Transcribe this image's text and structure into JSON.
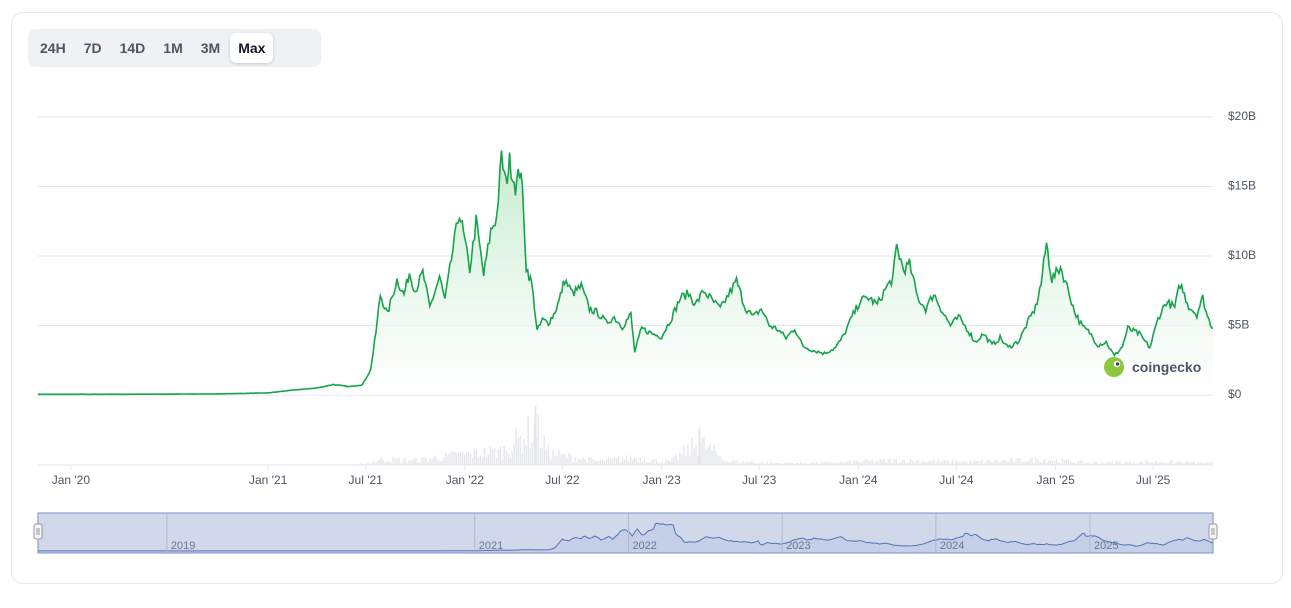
{
  "range_selector": {
    "buttons": [
      {
        "label": "24H",
        "active": false
      },
      {
        "label": "7D",
        "active": false
      },
      {
        "label": "14D",
        "active": false
      },
      {
        "label": "1M",
        "active": false
      },
      {
        "label": "3M",
        "active": false
      },
      {
        "label": "Max",
        "active": true
      }
    ]
  },
  "watermark": {
    "text": "coingecko",
    "icon": "gecko-logo-icon"
  },
  "colors": {
    "line": "#16a34a",
    "fill_top": "#bfe8c9",
    "fill_bottom": "#ffffff",
    "grid": "#e5e7eb",
    "volume": "#e5e7eb",
    "navigator_fill": "#d6ddf0",
    "navigator_line": "#4b6cb7"
  },
  "chart_data": {
    "type": "area",
    "title": "",
    "xlabel": "",
    "ylabel": "",
    "x_range": [
      "2019-11-01",
      "2025-10-20"
    ],
    "ylim": [
      0,
      20
    ],
    "y_unit": "billion USD",
    "y_ticks": [
      {
        "value": 0,
        "label": "$0"
      },
      {
        "value": 5,
        "label": "$5B"
      },
      {
        "value": 10,
        "label": "$10B"
      },
      {
        "value": 15,
        "label": "$15B"
      },
      {
        "value": 20,
        "label": "$20B"
      }
    ],
    "x_ticks": [
      {
        "date": "2020-01-01",
        "label": "Jan '20"
      },
      {
        "date": "2021-01-01",
        "label": "Jan '21"
      },
      {
        "date": "2021-07-01",
        "label": "Jul '21"
      },
      {
        "date": "2022-01-01",
        "label": "Jan '22"
      },
      {
        "date": "2022-07-01",
        "label": "Jul '22"
      },
      {
        "date": "2023-01-01",
        "label": "Jan '23"
      },
      {
        "date": "2023-07-01",
        "label": "Jul '23"
      },
      {
        "date": "2024-01-01",
        "label": "Jan '24"
      },
      {
        "date": "2024-07-01",
        "label": "Jul '24"
      },
      {
        "date": "2025-01-01",
        "label": "Jan '25"
      },
      {
        "date": "2025-07-01",
        "label": "Jul '25"
      }
    ],
    "series": [
      {
        "values": [
          [
            "2019-11-01",
            0.05
          ],
          [
            "2020-03-01",
            0.05
          ],
          [
            "2020-07-01",
            0.06
          ],
          [
            "2020-10-01",
            0.08
          ],
          [
            "2021-01-01",
            0.15
          ],
          [
            "2021-02-15",
            0.35
          ],
          [
            "2021-04-01",
            0.5
          ],
          [
            "2021-05-01",
            0.75
          ],
          [
            "2021-06-01",
            0.6
          ],
          [
            "2021-06-25",
            0.75
          ],
          [
            "2021-07-10",
            1.8
          ],
          [
            "2021-07-20",
            4.5
          ],
          [
            "2021-07-28",
            7.2
          ],
          [
            "2021-08-10",
            5.8
          ],
          [
            "2021-08-28",
            8.3
          ],
          [
            "2021-09-10",
            7.2
          ],
          [
            "2021-09-20",
            8.8
          ],
          [
            "2021-10-01",
            7.5
          ],
          [
            "2021-10-15",
            8.8
          ],
          [
            "2021-10-28",
            6.3
          ],
          [
            "2021-11-15",
            8.5
          ],
          [
            "2021-11-25",
            6.8
          ],
          [
            "2021-12-10",
            10.5
          ],
          [
            "2021-12-22",
            13.2
          ],
          [
            "2022-01-01",
            11.0
          ],
          [
            "2022-01-10",
            9.0
          ],
          [
            "2022-01-22",
            12.5
          ],
          [
            "2022-02-05",
            8.6
          ],
          [
            "2022-02-18",
            11.8
          ],
          [
            "2022-03-01",
            12.8
          ],
          [
            "2022-03-10",
            17.1
          ],
          [
            "2022-03-18",
            15.2
          ],
          [
            "2022-03-25",
            16.8
          ],
          [
            "2022-04-05",
            15.0
          ],
          [
            "2022-04-15",
            16.4
          ],
          [
            "2022-04-25",
            9.2
          ],
          [
            "2022-05-05",
            8.0
          ],
          [
            "2022-05-10",
            6.4
          ],
          [
            "2022-05-15",
            4.6
          ],
          [
            "2022-05-25",
            5.4
          ],
          [
            "2022-06-05",
            5.2
          ],
          [
            "2022-06-15",
            5.8
          ],
          [
            "2022-06-25",
            6.8
          ],
          [
            "2022-07-05",
            8.3
          ],
          [
            "2022-07-20",
            7.3
          ],
          [
            "2022-08-05",
            7.8
          ],
          [
            "2022-08-20",
            6.2
          ],
          [
            "2022-09-05",
            5.9
          ],
          [
            "2022-09-20",
            5.2
          ],
          [
            "2022-10-05",
            5.6
          ],
          [
            "2022-10-20",
            4.9
          ],
          [
            "2022-11-05",
            5.8
          ],
          [
            "2022-11-12",
            3.1
          ],
          [
            "2022-11-25",
            4.8
          ],
          [
            "2022-12-15",
            4.4
          ],
          [
            "2023-01-01",
            4.2
          ],
          [
            "2023-01-20",
            5.6
          ],
          [
            "2023-02-05",
            7.0
          ],
          [
            "2023-02-20",
            7.3
          ],
          [
            "2023-03-05",
            6.5
          ],
          [
            "2023-03-20",
            7.5
          ],
          [
            "2023-04-05",
            6.8
          ],
          [
            "2023-04-20",
            6.2
          ],
          [
            "2023-05-05",
            7.2
          ],
          [
            "2023-05-20",
            8.2
          ],
          [
            "2023-06-05",
            6.3
          ],
          [
            "2023-06-20",
            5.6
          ],
          [
            "2023-07-05",
            6.2
          ],
          [
            "2023-07-20",
            5.0
          ],
          [
            "2023-08-05",
            4.7
          ],
          [
            "2023-08-20",
            4.1
          ],
          [
            "2023-09-05",
            4.8
          ],
          [
            "2023-09-20",
            3.5
          ],
          [
            "2023-10-10",
            3.2
          ],
          [
            "2023-10-30",
            3.0
          ],
          [
            "2023-11-20",
            3.4
          ],
          [
            "2023-12-05",
            4.3
          ],
          [
            "2023-12-20",
            5.6
          ],
          [
            "2024-01-05",
            6.8
          ],
          [
            "2024-01-20",
            7.0
          ],
          [
            "2024-02-05",
            6.5
          ],
          [
            "2024-02-20",
            7.6
          ],
          [
            "2024-03-05",
            8.4
          ],
          [
            "2024-03-12",
            10.7
          ],
          [
            "2024-03-25",
            9.0
          ],
          [
            "2024-04-05",
            9.4
          ],
          [
            "2024-04-20",
            7.0
          ],
          [
            "2024-05-05",
            6.2
          ],
          [
            "2024-05-20",
            7.3
          ],
          [
            "2024-06-05",
            6.0
          ],
          [
            "2024-06-20",
            5.0
          ],
          [
            "2024-07-05",
            5.6
          ],
          [
            "2024-07-20",
            4.8
          ],
          [
            "2024-08-05",
            3.8
          ],
          [
            "2024-08-20",
            4.4
          ],
          [
            "2024-09-05",
            3.6
          ],
          [
            "2024-09-20",
            4.1
          ],
          [
            "2024-10-05",
            3.4
          ],
          [
            "2024-10-25",
            3.9
          ],
          [
            "2024-11-10",
            5.2
          ],
          [
            "2024-11-25",
            6.3
          ],
          [
            "2024-12-05",
            8.0
          ],
          [
            "2024-12-15",
            10.9
          ],
          [
            "2024-12-25",
            8.3
          ],
          [
            "2025-01-10",
            9.2
          ],
          [
            "2025-01-25",
            7.5
          ],
          [
            "2025-02-05",
            6.0
          ],
          [
            "2025-02-20",
            4.9
          ],
          [
            "2025-03-05",
            4.5
          ],
          [
            "2025-03-20",
            3.6
          ],
          [
            "2025-04-05",
            3.8
          ],
          [
            "2025-04-20",
            2.8
          ],
          [
            "2025-05-05",
            3.5
          ],
          [
            "2025-05-15",
            4.8
          ],
          [
            "2025-06-05",
            4.4
          ],
          [
            "2025-06-25",
            3.4
          ],
          [
            "2025-07-10",
            5.5
          ],
          [
            "2025-07-25",
            6.7
          ],
          [
            "2025-08-10",
            6.3
          ],
          [
            "2025-08-20",
            8.0
          ],
          [
            "2025-09-05",
            6.4
          ],
          [
            "2025-09-20",
            5.8
          ],
          [
            "2025-10-01",
            7.0
          ],
          [
            "2025-10-10",
            5.6
          ],
          [
            "2025-10-20",
            4.8
          ]
        ]
      }
    ],
    "volume": {
      "values": [
        [
          "2019-11-01",
          0.0
        ],
        [
          "2021-06-25",
          0.02
        ],
        [
          "2021-08-01",
          0.15
        ],
        [
          "2021-10-01",
          0.12
        ],
        [
          "2021-12-15",
          0.25
        ],
        [
          "2022-03-10",
          0.35
        ],
        [
          "2022-05-12",
          0.95
        ],
        [
          "2022-06-05",
          0.3
        ],
        [
          "2022-09-01",
          0.1
        ],
        [
          "2022-11-10",
          0.18
        ],
        [
          "2023-01-15",
          0.08
        ],
        [
          "2023-03-12",
          0.58
        ],
        [
          "2023-05-01",
          0.1
        ],
        [
          "2023-08-01",
          0.05
        ],
        [
          "2023-11-01",
          0.06
        ],
        [
          "2024-03-10",
          0.12
        ],
        [
          "2024-08-05",
          0.08
        ],
        [
          "2024-12-10",
          0.14
        ],
        [
          "2025-03-01",
          0.06
        ],
        [
          "2025-07-20",
          0.08
        ],
        [
          "2025-10-20",
          0.05
        ]
      ]
    },
    "navigator": {
      "x_range": [
        "2018-03-01",
        "2025-10-20"
      ],
      "tick_labels": [
        {
          "date": "2019-01-01",
          "label": "2019"
        },
        {
          "date": "2021-01-01",
          "label": "2021"
        },
        {
          "date": "2022-01-01",
          "label": "2022"
        },
        {
          "date": "2023-01-01",
          "label": "2023"
        },
        {
          "date": "2024-01-01",
          "label": "2024"
        },
        {
          "date": "2025-01-01",
          "label": "2025"
        }
      ]
    },
    "grid": true,
    "legend": "none"
  }
}
